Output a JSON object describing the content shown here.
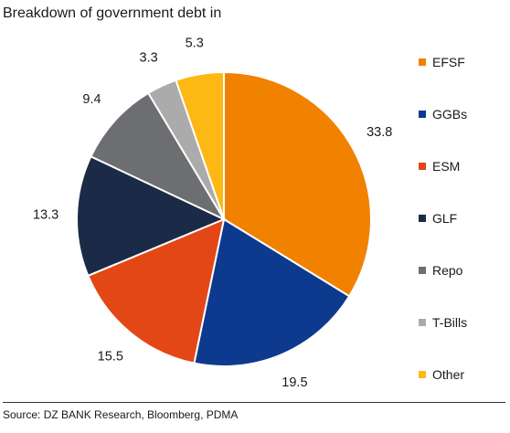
{
  "chart_data": {
    "type": "pie",
    "title": "Breakdown of government debt in",
    "categories": [
      "EFSF",
      "GGBs",
      "ESM",
      "GLF",
      "Repo",
      "T-Bills",
      "Other"
    ],
    "values": [
      33.8,
      19.5,
      15.5,
      13.3,
      9.4,
      3.3,
      5.3
    ],
    "value_labels": [
      "33.8",
      "19.5",
      "15.5",
      "13.3",
      "9.4",
      "3.3",
      "5.3"
    ],
    "colors": [
      "#F08200",
      "#0D3A8F",
      "#E34716",
      "#1B2B47",
      "#6D6E71",
      "#ABABAB",
      "#FDB813"
    ],
    "legend_position": "right",
    "start_angle": "12 o'clock",
    "direction": "clockwise"
  },
  "source": "Source: DZ BANK Research, Bloomberg, PDMA"
}
